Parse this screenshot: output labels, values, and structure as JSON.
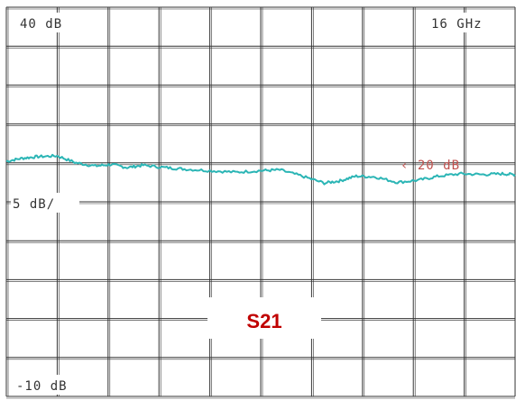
{
  "chart_data": {
    "type": "line",
    "title": "",
    "labels": {
      "top_left": "40 dB",
      "top_right": "16 GHz",
      "left_mid": "5 dB/",
      "bottom_left": "-10 dB",
      "reference_marker": "‹ 20 dB",
      "trace_name": "S21"
    },
    "y_range_db": [
      -10,
      40
    ],
    "scale_db_per_div": 5,
    "x_range_ghz": [
      0,
      16
    ],
    "grid": true,
    "grid_divisions": {
      "x": 10,
      "y": 10
    },
    "series": [
      {
        "name": "S21",
        "x": [
          0,
          0.5,
          1.0,
          1.6,
          2.2,
          2.8,
          3.3,
          3.8,
          4.3,
          5.0,
          5.6,
          6.4,
          7.2,
          8.0,
          8.6,
          9.3,
          10.0,
          10.5,
          11.0,
          11.6,
          12.3,
          13.0,
          13.6,
          14.3,
          15.0,
          15.6,
          16.0
        ],
        "values": [
          20.2,
          20.6,
          20.8,
          20.9,
          20.0,
          19.6,
          19.8,
          19.4,
          19.7,
          19.4,
          19.2,
          19.0,
          18.8,
          19.0,
          19.1,
          18.3,
          17.4,
          17.7,
          18.3,
          18.2,
          17.5,
          17.8,
          18.3,
          18.6,
          18.5,
          18.6,
          18.5
        ]
      }
    ],
    "colors": {
      "trace": "#2bb5b5",
      "marker": "#c0504d",
      "s21_label": "#c00000",
      "grid": "#333333"
    }
  }
}
